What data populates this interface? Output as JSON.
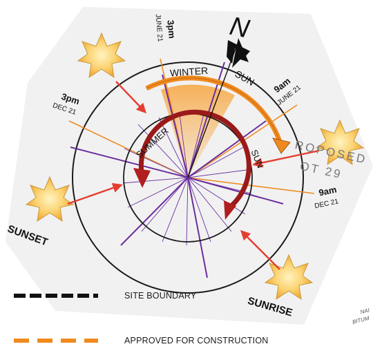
{
  "labels": {
    "north": "N",
    "winter": "WINTER",
    "sun_top": "SUN",
    "summer": "SUMMER",
    "sun_right": "SUN",
    "t_3pm_june": "3pm",
    "t_june_21_a": "JUNE 21",
    "t_3pm_dec": "3pm",
    "t_dec_21_a": "DEC 21",
    "t_9am_june": "9am",
    "t_june_21_b": "JUNE 21",
    "t_9am_dec": "9am",
    "t_dec_21_b": "DEC 21",
    "sunset": "SUNSET",
    "sunrise": "SUNRISE",
    "proposed": "ROPOSED",
    "lot": "OT 29",
    "nail_1": "NAI",
    "nail_2": "BITUM"
  },
  "legend": {
    "site_boundary": "SITE BOUNDARY",
    "approved": "APPROVED FOR CONSTRUCTION"
  },
  "colors": {
    "orange": "#f08a1f",
    "purple": "#6a2e9e",
    "dark_red": "#b01e1e",
    "red_arrow": "#e53d2f",
    "sun_fill": "#fbd270",
    "sun_stroke": "#c79a3b"
  }
}
